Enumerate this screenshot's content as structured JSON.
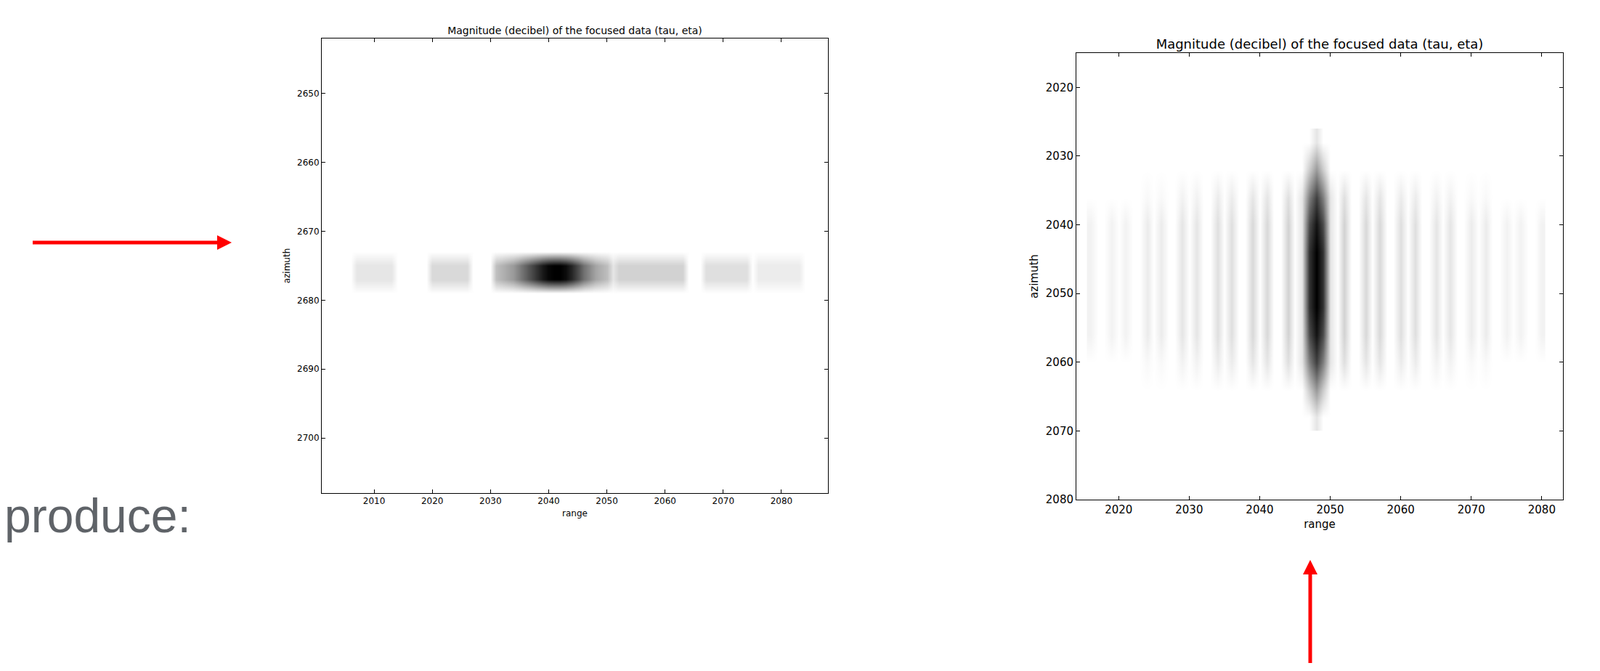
{
  "text": "produce:",
  "chart_data": [
    {
      "type": "heatmap",
      "title": "Magnitude (decibel) of the focused data (tau, eta)",
      "x_label": "range",
      "y_label": "azimuth",
      "x": [
        2002,
        2003,
        2004,
        2005,
        2006,
        2007,
        2008,
        2009,
        2010,
        2011,
        2012,
        2013,
        2014,
        2015,
        2016,
        2017,
        2018,
        2019,
        2020,
        2021,
        2022,
        2023,
        2024,
        2025,
        2026,
        2027,
        2028,
        2029,
        2030,
        2031,
        2032,
        2033,
        2034,
        2035,
        2036,
        2037,
        2038,
        2039,
        2040,
        2041,
        2042,
        2043,
        2044,
        2045,
        2046,
        2047,
        2048,
        2049,
        2050,
        2051,
        2052,
        2053,
        2054,
        2055,
        2056,
        2057,
        2058,
        2059,
        2060,
        2061,
        2062,
        2063,
        2064,
        2065,
        2066,
        2067,
        2068,
        2069,
        2070,
        2071,
        2072,
        2073,
        2074,
        2075,
        2076,
        2077,
        2078,
        2079,
        2080,
        2081,
        2082,
        2083,
        2084,
        2085,
        2086
      ],
      "y": [
        2673,
        2675,
        2677,
        2679
      ],
      "z": [
        [
          -40,
          -40,
          -40,
          -40,
          -40,
          -40,
          -40,
          -40,
          -40,
          -40,
          -40,
          -40,
          -40,
          -40,
          -40,
          -40,
          -40,
          -40,
          -40,
          -40,
          -40,
          -40,
          -40,
          -40,
          -40,
          -40,
          -40,
          -40,
          -40,
          -40,
          -40,
          -40,
          -40,
          -40,
          -40,
          -40,
          -40,
          -40,
          -40,
          -40,
          -40,
          -40,
          -40,
          -40,
          -40,
          -40,
          -40,
          -40,
          -40,
          -40,
          -40,
          -40,
          -40,
          -40,
          -40,
          -40,
          -40,
          -40,
          -40,
          -40,
          -40,
          -40,
          -40,
          -40,
          -40,
          -40,
          -40,
          -40,
          -40,
          -40,
          -40,
          -40,
          -40,
          -40,
          -40,
          -40,
          -40,
          -40,
          -40,
          -40,
          -40,
          -40,
          -40,
          -40,
          -40
        ],
        [
          -40,
          -40,
          -40,
          -40,
          -40,
          -36,
          -36,
          -36,
          -36,
          -36,
          -36,
          -36,
          -40,
          -40,
          -40,
          -40,
          -40,
          -40,
          -34,
          -34,
          -34,
          -34,
          -34,
          -34,
          -34,
          -40,
          -40,
          -40,
          -40,
          -30,
          -28,
          -26,
          -24,
          -20,
          -16,
          -12,
          -8,
          -4,
          -1,
          0,
          0,
          -2,
          -6,
          -12,
          -18,
          -22,
          -26,
          -28,
          -30,
          -36,
          -33,
          -33,
          -33,
          -33,
          -33,
          -33,
          -33,
          -33,
          -33,
          -33,
          -33,
          -33,
          -40,
          -40,
          -40,
          -35,
          -35,
          -35,
          -35,
          -35,
          -35,
          -35,
          -35,
          -40,
          -37,
          -37,
          -37,
          -37,
          -37,
          -37,
          -37,
          -37,
          -40,
          -40,
          -40
        ],
        [
          -40,
          -40,
          -40,
          -40,
          -40,
          -36,
          -36,
          -36,
          -36,
          -36,
          -36,
          -36,
          -40,
          -40,
          -40,
          -40,
          -40,
          -40,
          -34,
          -34,
          -34,
          -34,
          -34,
          -34,
          -34,
          -40,
          -40,
          -40,
          -40,
          -30,
          -28,
          -26,
          -24,
          -20,
          -16,
          -12,
          -8,
          -4,
          -1,
          0,
          0,
          -2,
          -6,
          -12,
          -18,
          -22,
          -26,
          -28,
          -30,
          -36,
          -33,
          -33,
          -33,
          -33,
          -33,
          -33,
          -33,
          -33,
          -33,
          -33,
          -33,
          -33,
          -40,
          -40,
          -40,
          -35,
          -35,
          -35,
          -35,
          -35,
          -35,
          -35,
          -35,
          -40,
          -37,
          -37,
          -37,
          -37,
          -37,
          -37,
          -37,
          -37,
          -40,
          -40,
          -40
        ],
        [
          -40,
          -40,
          -40,
          -40,
          -40,
          -40,
          -40,
          -40,
          -40,
          -40,
          -40,
          -40,
          -40,
          -40,
          -40,
          -40,
          -40,
          -40,
          -40,
          -40,
          -40,
          -40,
          -40,
          -40,
          -40,
          -40,
          -40,
          -40,
          -40,
          -40,
          -40,
          -40,
          -40,
          -40,
          -40,
          -40,
          -40,
          -40,
          -40,
          -40,
          -40,
          -40,
          -40,
          -40,
          -40,
          -40,
          -40,
          -40,
          -40,
          -40,
          -40,
          -40,
          -40,
          -40,
          -40,
          -40,
          -40,
          -40,
          -40,
          -40,
          -40,
          -40,
          -40,
          -40,
          -40,
          -40,
          -40,
          -40,
          -40,
          -40,
          -40,
          -40,
          -40,
          -40,
          -40,
          -40,
          -40,
          -40,
          -40,
          -40,
          -40,
          -40,
          -40,
          -40,
          -40
        ]
      ],
      "color_range": [
        -40,
        0
      ],
      "xlim": [
        2001,
        2088
      ],
      "ylim": [
        2708,
        2642
      ],
      "xticks": [
        2010,
        2020,
        2030,
        2040,
        2050,
        2060,
        2070,
        2080
      ],
      "yticks": [
        2650,
        2660,
        2670,
        2680,
        2690,
        2700
      ],
      "grid": false
    },
    {
      "type": "heatmap",
      "title": "Magnitude (decibel) of the focused data (tau, eta)",
      "x_label": "range",
      "y_label": "azimuth",
      "x": [
        2016,
        2017,
        2018,
        2019,
        2020,
        2021,
        2022,
        2023,
        2024,
        2025,
        2026,
        2027,
        2028,
        2029,
        2030,
        2031,
        2032,
        2033,
        2034,
        2035,
        2036,
        2037,
        2038,
        2039,
        2040,
        2041,
        2042,
        2043,
        2044,
        2045,
        2046,
        2047,
        2048,
        2049,
        2050,
        2051,
        2052,
        2053,
        2054,
        2055,
        2056,
        2057,
        2058,
        2059,
        2060,
        2061,
        2062,
        2063,
        2064,
        2065,
        2066,
        2067,
        2068,
        2069,
        2070,
        2071,
        2072,
        2073,
        2074,
        2075,
        2076,
        2077,
        2078,
        2079,
        2080
      ],
      "y": [
        2028,
        2032,
        2036,
        2040,
        2044,
        2048,
        2052,
        2056,
        2060,
        2064,
        2068
      ],
      "z": [
        [
          -40,
          -40,
          -40,
          -40,
          -40,
          -40,
          -40,
          -40,
          -40,
          -40,
          -40,
          -40,
          -40,
          -40,
          -40,
          -40,
          -40,
          -40,
          -40,
          -40,
          -40,
          -40,
          -40,
          -40,
          -40,
          -40,
          -40,
          -40,
          -40,
          -40,
          -40,
          -40,
          -36,
          -40,
          -40,
          -40,
          -40,
          -40,
          -40,
          -40,
          -40,
          -40,
          -40,
          -40,
          -40,
          -40,
          -40,
          -40,
          -40,
          -40,
          -40,
          -40,
          -40,
          -40,
          -40,
          -40,
          -40,
          -40,
          -40,
          -40,
          -40,
          -40,
          -40,
          -40,
          -40
        ],
        [
          -40,
          -40,
          -40,
          -40,
          -40,
          -40,
          -40,
          -40,
          -40,
          -40,
          -40,
          -40,
          -40,
          -40,
          -40,
          -40,
          -40,
          -40,
          -40,
          -40,
          -40,
          -40,
          -40,
          -40,
          -40,
          -40,
          -40,
          -40,
          -40,
          -40,
          -40,
          -32,
          -24,
          -32,
          -40,
          -40,
          -40,
          -40,
          -40,
          -40,
          -40,
          -40,
          -40,
          -40,
          -40,
          -40,
          -40,
          -40,
          -40,
          -40,
          -40,
          -40,
          -40,
          -40,
          -40,
          -40,
          -40,
          -40,
          -40,
          -40,
          -40,
          -40,
          -40,
          -40,
          -40
        ],
        [
          -40,
          -40,
          -40,
          -40,
          -40,
          -40,
          -40,
          -40,
          -39,
          -40,
          -39,
          -40,
          -40,
          -38,
          -40,
          -38,
          -40,
          -40,
          -37,
          -40,
          -37,
          -40,
          -40,
          -36,
          -40,
          -36,
          -40,
          -40,
          -35,
          -40,
          -36,
          -20,
          -10,
          -20,
          -36,
          -40,
          -35,
          -40,
          -40,
          -36,
          -40,
          -36,
          -40,
          -40,
          -37,
          -40,
          -37,
          -40,
          -40,
          -38,
          -40,
          -38,
          -40,
          -40,
          -39,
          -40,
          -39,
          -40,
          -40,
          -40,
          -40,
          -40,
          -40,
          -40,
          -40
        ],
        [
          -38,
          -40,
          -40,
          -38,
          -40,
          -38,
          -40,
          -40,
          -37,
          -40,
          -37,
          -40,
          -40,
          -36,
          -40,
          -36,
          -40,
          -40,
          -35,
          -40,
          -35,
          -40,
          -40,
          -34,
          -40,
          -34,
          -40,
          -40,
          -33,
          -40,
          -36,
          -12,
          -3,
          -12,
          -36,
          -40,
          -33,
          -40,
          -40,
          -34,
          -40,
          -34,
          -40,
          -40,
          -35,
          -40,
          -35,
          -40,
          -40,
          -36,
          -40,
          -36,
          -40,
          -40,
          -37,
          -40,
          -37,
          -40,
          -40,
          -38,
          -40,
          -38,
          -40,
          -40,
          -38
        ],
        [
          -38,
          -40,
          -40,
          -38,
          -40,
          -38,
          -40,
          -40,
          -37,
          -40,
          -37,
          -40,
          -40,
          -36,
          -40,
          -36,
          -40,
          -40,
          -35,
          -40,
          -35,
          -40,
          -40,
          -34,
          -40,
          -34,
          -40,
          -40,
          -33,
          -40,
          -36,
          -8,
          0,
          -8,
          -36,
          -40,
          -33,
          -40,
          -40,
          -34,
          -40,
          -34,
          -40,
          -40,
          -35,
          -40,
          -35,
          -40,
          -40,
          -36,
          -40,
          -36,
          -40,
          -40,
          -37,
          -40,
          -37,
          -40,
          -40,
          -38,
          -40,
          -38,
          -40,
          -40,
          -38
        ],
        [
          -38,
          -40,
          -40,
          -38,
          -40,
          -38,
          -40,
          -40,
          -37,
          -40,
          -37,
          -40,
          -40,
          -36,
          -40,
          -36,
          -40,
          -40,
          -35,
          -40,
          -35,
          -40,
          -40,
          -34,
          -40,
          -34,
          -40,
          -40,
          -33,
          -40,
          -36,
          -8,
          0,
          -8,
          -36,
          -40,
          -33,
          -40,
          -40,
          -34,
          -40,
          -34,
          -40,
          -40,
          -35,
          -40,
          -35,
          -40,
          -40,
          -36,
          -40,
          -36,
          -40,
          -40,
          -37,
          -40,
          -37,
          -40,
          -40,
          -38,
          -40,
          -38,
          -40,
          -40,
          -38
        ],
        [
          -38,
          -40,
          -40,
          -38,
          -40,
          -38,
          -40,
          -40,
          -37,
          -40,
          -37,
          -40,
          -40,
          -36,
          -40,
          -36,
          -40,
          -40,
          -35,
          -40,
          -35,
          -40,
          -40,
          -34,
          -40,
          -34,
          -40,
          -40,
          -33,
          -40,
          -36,
          -8,
          0,
          -8,
          -36,
          -40,
          -33,
          -40,
          -40,
          -34,
          -40,
          -34,
          -40,
          -40,
          -35,
          -40,
          -35,
          -40,
          -40,
          -36,
          -40,
          -36,
          -40,
          -40,
          -37,
          -40,
          -37,
          -40,
          -40,
          -38,
          -40,
          -38,
          -40,
          -40,
          -38
        ],
        [
          -38,
          -40,
          -40,
          -38,
          -40,
          -38,
          -40,
          -40,
          -37,
          -40,
          -37,
          -40,
          -40,
          -36,
          -40,
          -36,
          -40,
          -40,
          -35,
          -40,
          -35,
          -40,
          -40,
          -34,
          -40,
          -34,
          -40,
          -40,
          -33,
          -40,
          -36,
          -12,
          -3,
          -12,
          -36,
          -40,
          -33,
          -40,
          -40,
          -34,
          -40,
          -34,
          -40,
          -40,
          -35,
          -40,
          -35,
          -40,
          -40,
          -36,
          -40,
          -36,
          -40,
          -40,
          -37,
          -40,
          -37,
          -40,
          -40,
          -38,
          -40,
          -38,
          -40,
          -40,
          -38
        ],
        [
          -40,
          -40,
          -40,
          -40,
          -40,
          -40,
          -40,
          -40,
          -39,
          -40,
          -39,
          -40,
          -40,
          -38,
          -40,
          -38,
          -40,
          -40,
          -37,
          -40,
          -37,
          -40,
          -40,
          -36,
          -40,
          -36,
          -40,
          -40,
          -35,
          -40,
          -36,
          -20,
          -10,
          -20,
          -36,
          -40,
          -35,
          -40,
          -40,
          -36,
          -40,
          -36,
          -40,
          -40,
          -37,
          -40,
          -37,
          -40,
          -40,
          -38,
          -40,
          -38,
          -40,
          -40,
          -39,
          -40,
          -39,
          -40,
          -40,
          -40,
          -40,
          -40,
          -40,
          -40,
          -40
        ],
        [
          -40,
          -40,
          -40,
          -40,
          -40,
          -40,
          -40,
          -40,
          -40,
          -40,
          -40,
          -40,
          -40,
          -40,
          -40,
          -40,
          -40,
          -40,
          -40,
          -40,
          -40,
          -40,
          -40,
          -40,
          -40,
          -40,
          -40,
          -40,
          -40,
          -40,
          -40,
          -32,
          -24,
          -32,
          -40,
          -40,
          -40,
          -40,
          -40,
          -40,
          -40,
          -40,
          -40,
          -40,
          -40,
          -40,
          -40,
          -40,
          -40,
          -40,
          -40,
          -40,
          -40,
          -40,
          -40,
          -40,
          -40,
          -40,
          -40,
          -40,
          -40,
          -40,
          -40,
          -40,
          -40
        ],
        [
          -40,
          -40,
          -40,
          -40,
          -40,
          -40,
          -40,
          -40,
          -40,
          -40,
          -40,
          -40,
          -40,
          -40,
          -40,
          -40,
          -40,
          -40,
          -40,
          -40,
          -40,
          -40,
          -40,
          -40,
          -40,
          -40,
          -40,
          -40,
          -40,
          -40,
          -40,
          -40,
          -36,
          -40,
          -40,
          -40,
          -40,
          -40,
          -40,
          -40,
          -40,
          -40,
          -40,
          -40,
          -40,
          -40,
          -40,
          -40,
          -40,
          -40,
          -40,
          -40,
          -40,
          -40,
          -40,
          -40,
          -40,
          -40,
          -40,
          -40,
          -40,
          -40,
          -40,
          -40,
          -40
        ]
      ],
      "color_range": [
        -40,
        0
      ],
      "xlim": [
        2014,
        2083
      ],
      "ylim": [
        2080,
        2015
      ],
      "xticks": [
        2020,
        2030,
        2040,
        2050,
        2060,
        2070,
        2080
      ],
      "yticks": [
        2020,
        2030,
        2040,
        2050,
        2060,
        2070,
        2080
      ],
      "grid": false
    }
  ]
}
